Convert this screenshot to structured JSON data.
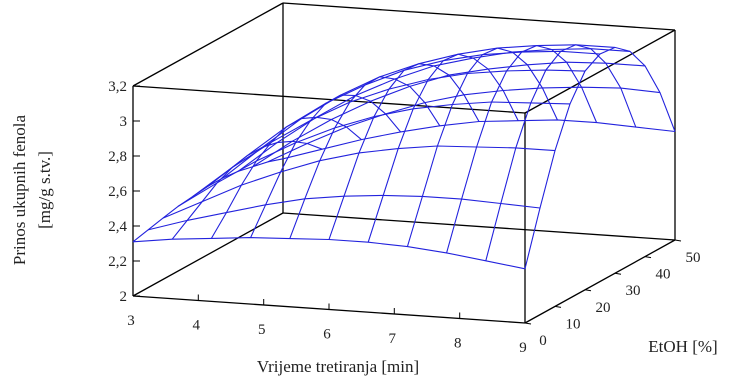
{
  "chart_data": {
    "type": "surface3d",
    "title": "",
    "xlabel": "Vrijeme tretiranja [min]",
    "ylabel": "EtOH [%]",
    "zlabel_line1": "Prinos ukupnih fenola",
    "zlabel_line2": "[mg/g s.tv.]",
    "xlim": [
      3,
      9
    ],
    "ylim": [
      0,
      50
    ],
    "zlim": [
      2,
      3.2
    ],
    "x_ticks": [
      "3",
      "4",
      "5",
      "6",
      "7",
      "8",
      "9"
    ],
    "y_ticks": [
      "0",
      "10",
      "20",
      "30",
      "40",
      "50"
    ],
    "z_ticks": [
      "2",
      "2,2",
      "2,4",
      "2,6",
      "2,8",
      "3",
      "3,2"
    ],
    "z_tick_values": [
      2,
      2.2,
      2.4,
      2.6,
      2.8,
      3.0,
      3.2
    ],
    "grid_x": [
      3,
      3.6,
      4.2,
      4.8,
      5.4,
      6,
      6.6,
      7.2,
      7.8,
      8.4,
      9
    ],
    "grid_y": [
      0,
      5,
      10,
      15,
      20,
      25,
      30,
      35,
      40,
      45,
      50
    ],
    "z_values": [
      [
        2.31,
        2.34,
        2.36,
        2.38,
        2.39,
        2.4,
        2.4,
        2.39,
        2.37,
        2.34,
        2.31
      ],
      [
        2.33,
        2.4,
        2.46,
        2.52,
        2.57,
        2.6,
        2.62,
        2.63,
        2.63,
        2.62,
        2.61
      ],
      [
        2.35,
        2.46,
        2.57,
        2.66,
        2.74,
        2.8,
        2.84,
        2.87,
        2.88,
        2.89,
        2.89
      ],
      [
        2.37,
        2.52,
        2.66,
        2.78,
        2.88,
        2.96,
        3.02,
        3.06,
        3.09,
        3.1,
        3.11
      ],
      [
        2.38,
        2.56,
        2.72,
        2.86,
        2.98,
        3.07,
        3.14,
        3.19,
        3.22,
        3.24,
        3.25
      ],
      [
        2.39,
        2.58,
        2.76,
        2.91,
        3.03,
        3.13,
        3.2,
        3.25,
        3.28,
        3.3,
        3.3
      ],
      [
        2.39,
        2.58,
        2.76,
        2.91,
        3.03,
        3.12,
        3.19,
        3.24,
        3.27,
        3.29,
        3.29
      ],
      [
        2.38,
        2.56,
        2.72,
        2.86,
        2.97,
        3.06,
        3.12,
        3.17,
        3.2,
        3.22,
        3.22
      ],
      [
        2.36,
        2.52,
        2.66,
        2.78,
        2.88,
        2.96,
        3.01,
        3.05,
        3.08,
        3.09,
        3.09
      ],
      [
        2.34,
        2.46,
        2.57,
        2.66,
        2.74,
        2.8,
        2.84,
        2.87,
        2.89,
        2.9,
        2.89
      ],
      [
        2.31,
        2.38,
        2.45,
        2.51,
        2.56,
        2.6,
        2.62,
        2.64,
        2.64,
        2.63,
        2.62
      ]
    ],
    "grid": false,
    "surface_color": "#2222dd",
    "axis_color": "#000000"
  }
}
